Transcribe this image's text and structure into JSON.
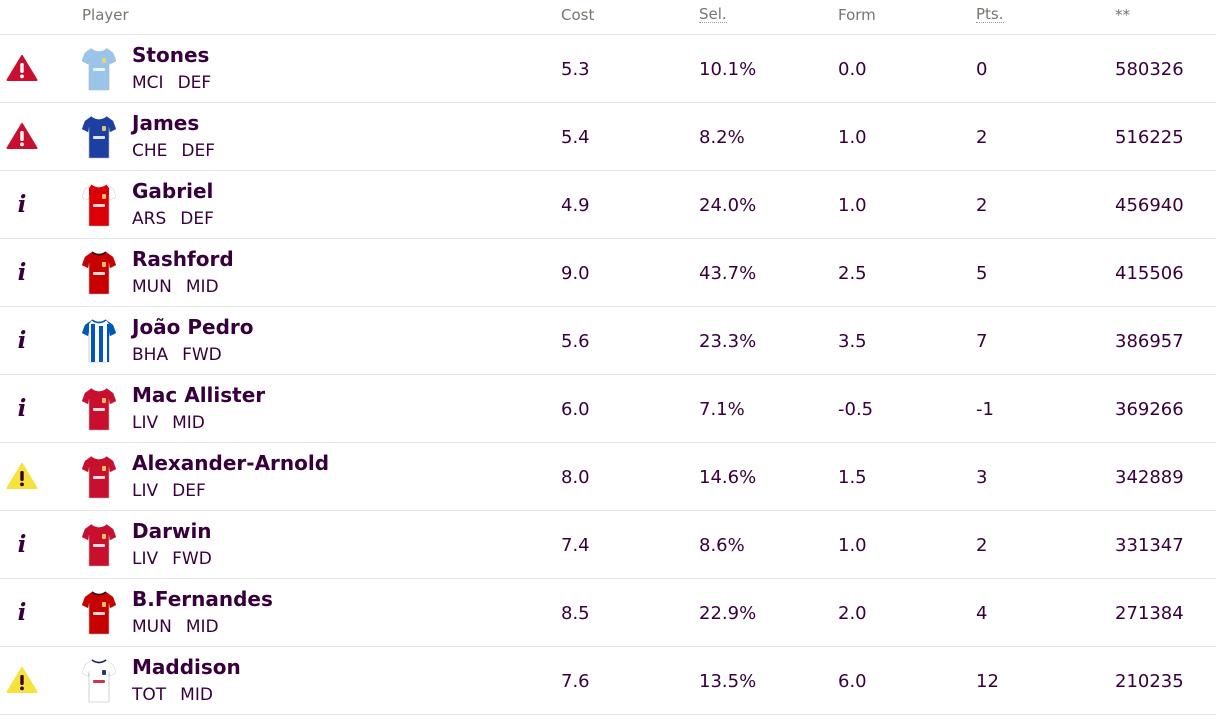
{
  "columns": {
    "player": "Player",
    "cost": "Cost",
    "sel": "Sel.",
    "form": "Form",
    "pts": "Pts.",
    "transfers": "**"
  },
  "colors": {
    "text": "#37003c",
    "header_text": "#76766f",
    "danger": "#c8102e",
    "warning": "#f5e23a"
  },
  "rows": [
    {
      "status": "injury-warning-icon",
      "name": "Stones",
      "team": "MCI",
      "position": "DEF",
      "kit": "man-city-kit-icon",
      "cost": "5.3",
      "sel": "10.1%",
      "form": "0.0",
      "pts": "0",
      "transfers": "580326"
    },
    {
      "status": "injury-warning-icon",
      "name": "James",
      "team": "CHE",
      "position": "DEF",
      "kit": "chelsea-kit-icon",
      "cost": "5.4",
      "sel": "8.2%",
      "form": "1.0",
      "pts": "2",
      "transfers": "516225"
    },
    {
      "status": "info-icon",
      "name": "Gabriel",
      "team": "ARS",
      "position": "DEF",
      "kit": "arsenal-kit-icon",
      "cost": "4.9",
      "sel": "24.0%",
      "form": "1.0",
      "pts": "2",
      "transfers": "456940"
    },
    {
      "status": "info-icon",
      "name": "Rashford",
      "team": "MUN",
      "position": "MID",
      "kit": "man-utd-kit-icon",
      "cost": "9.0",
      "sel": "43.7%",
      "form": "2.5",
      "pts": "5",
      "transfers": "415506"
    },
    {
      "status": "info-icon",
      "name": "João Pedro",
      "team": "BHA",
      "position": "FWD",
      "kit": "brighton-kit-icon",
      "cost": "5.6",
      "sel": "23.3%",
      "form": "3.5",
      "pts": "7",
      "transfers": "386957"
    },
    {
      "status": "info-icon",
      "name": "Mac Allister",
      "team": "LIV",
      "position": "MID",
      "kit": "liverpool-kit-icon",
      "cost": "6.0",
      "sel": "7.1%",
      "form": "-0.5",
      "pts": "-1",
      "transfers": "369266"
    },
    {
      "status": "doubt-warning-icon",
      "name": "Alexander-Arnold",
      "team": "LIV",
      "position": "DEF",
      "kit": "liverpool-kit-icon",
      "cost": "8.0",
      "sel": "14.6%",
      "form": "1.5",
      "pts": "3",
      "transfers": "342889"
    },
    {
      "status": "info-icon",
      "name": "Darwin",
      "team": "LIV",
      "position": "FWD",
      "kit": "liverpool-kit-icon",
      "cost": "7.4",
      "sel": "8.6%",
      "form": "1.0",
      "pts": "2",
      "transfers": "331347"
    },
    {
      "status": "info-icon",
      "name": "B.Fernandes",
      "team": "MUN",
      "position": "MID",
      "kit": "man-utd-kit-icon",
      "cost": "8.5",
      "sel": "22.9%",
      "form": "2.0",
      "pts": "4",
      "transfers": "271384"
    },
    {
      "status": "doubt-warning-icon",
      "name": "Maddison",
      "team": "TOT",
      "position": "MID",
      "kit": "tottenham-kit-icon",
      "cost": "7.6",
      "sel": "13.5%",
      "form": "6.0",
      "pts": "12",
      "transfers": "210235"
    }
  ]
}
